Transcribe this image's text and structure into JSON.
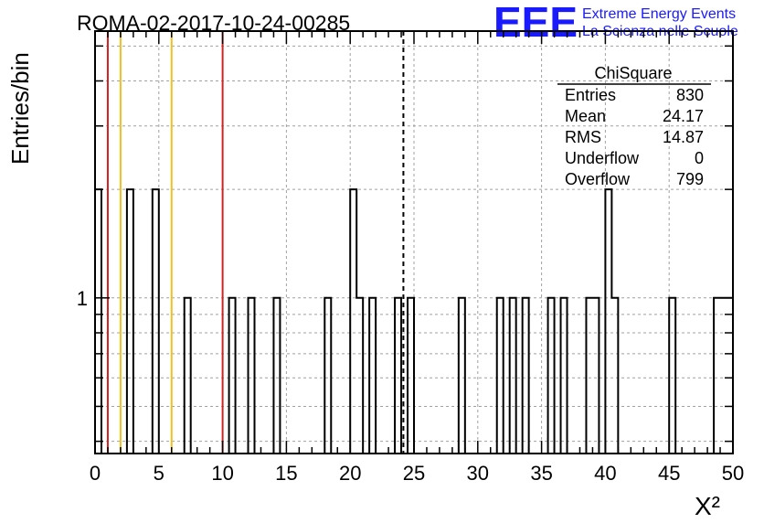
{
  "run_title": "ROMA-02-2017-10-24-00285",
  "logo": {
    "text": "EEE",
    "line1": "Extreme Energy Events",
    "line2": "La Scienza nelle Scuole",
    "color": "#1a1aff"
  },
  "stats": {
    "title": "ChiSquare",
    "rows": [
      {
        "label": "Entries",
        "value": "830"
      },
      {
        "label": "Mean",
        "value": "24.17"
      },
      {
        "label": "RMS",
        "value": "14.87"
      },
      {
        "label": "Underflow",
        "value": "0"
      },
      {
        "label": "Overflow",
        "value": "799"
      }
    ]
  },
  "chart_data": {
    "type": "bar",
    "title": "ROMA-02-2017-10-24-00285",
    "xlabel": "X²",
    "ylabel": "Entries/bin",
    "xlim": [
      0,
      50
    ],
    "ylim_log": [
      0.37,
      5.5
    ],
    "y_scale": "log",
    "bin_width": 0.5,
    "grid": true,
    "x_ticks": [
      "0",
      "5",
      "10",
      "15",
      "20",
      "25",
      "30",
      "35",
      "40",
      "45",
      "50"
    ],
    "y_tick_labels": [
      {
        "value": 1,
        "label": "1"
      }
    ],
    "bins": [
      {
        "x": 0.0,
        "count": 2
      },
      {
        "x": 2.5,
        "count": 2
      },
      {
        "x": 4.5,
        "count": 2
      },
      {
        "x": 7.0,
        "count": 1
      },
      {
        "x": 10.5,
        "count": 1
      },
      {
        "x": 12.0,
        "count": 1
      },
      {
        "x": 14.0,
        "count": 1
      },
      {
        "x": 18.0,
        "count": 1
      },
      {
        "x": 20.0,
        "count": 2
      },
      {
        "x": 20.5,
        "count": 1
      },
      {
        "x": 21.5,
        "count": 1
      },
      {
        "x": 23.5,
        "count": 1
      },
      {
        "x": 24.5,
        "count": 1
      },
      {
        "x": 28.5,
        "count": 1
      },
      {
        "x": 31.5,
        "count": 1
      },
      {
        "x": 32.5,
        "count": 1
      },
      {
        "x": 33.5,
        "count": 1
      },
      {
        "x": 35.5,
        "count": 1
      },
      {
        "x": 36.5,
        "count": 1
      },
      {
        "x": 38.5,
        "count": 1
      },
      {
        "x": 39.0,
        "count": 1
      },
      {
        "x": 40.0,
        "count": 2
      },
      {
        "x": 40.5,
        "count": 1
      },
      {
        "x": 45.0,
        "count": 1
      },
      {
        "x": 48.5,
        "count": 1
      },
      {
        "x": 49.0,
        "count": 1
      },
      {
        "x": 49.5,
        "count": 1
      }
    ],
    "markers": [
      {
        "x": 1,
        "color": "#d42020",
        "style": "solid"
      },
      {
        "x": 2,
        "color": "#f0c020",
        "style": "solid"
      },
      {
        "x": 6,
        "color": "#f0c020",
        "style": "solid"
      },
      {
        "x": 10,
        "color": "#d42020",
        "style": "solid"
      },
      {
        "x": 24.17,
        "color": "#000000",
        "style": "dashed"
      }
    ]
  }
}
